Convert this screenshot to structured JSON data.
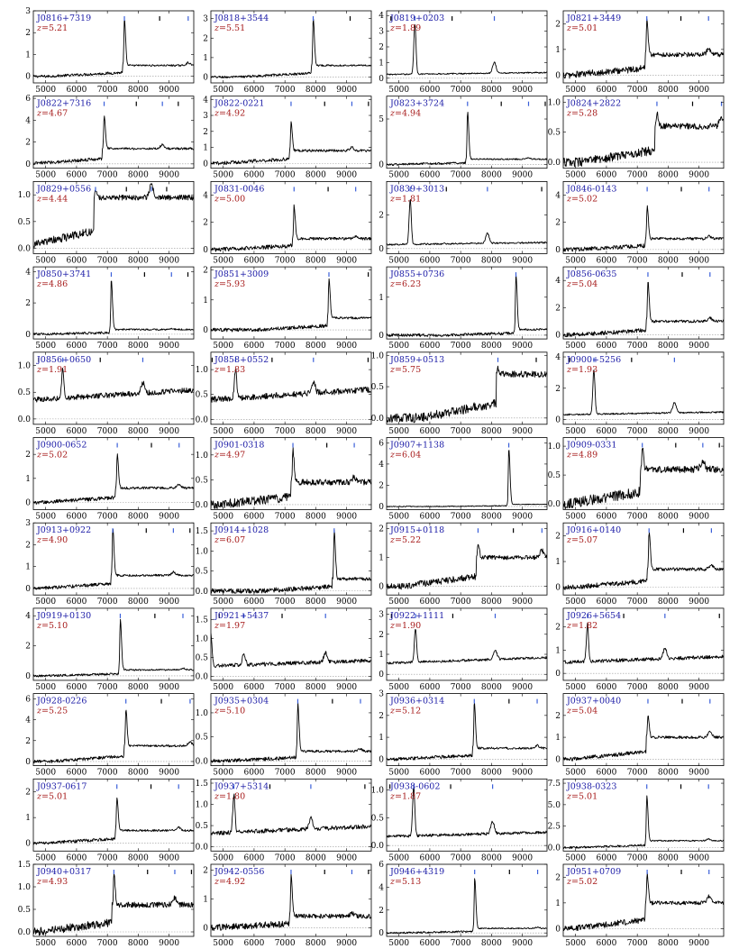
{
  "chart_data": {
    "type": "line",
    "layout": {
      "columns": 4,
      "rows": 11
    },
    "xlim": [
      4600,
      9800
    ],
    "x_ticks": [
      "5000",
      "6000",
      "7000",
      "8000",
      "9000"
    ],
    "colors": {
      "name": "#1a1aa6",
      "redshift": "#a61a1a",
      "spectrum": "#000000",
      "line_marker_blue": "#3a5fd9",
      "line_marker_black": "#000000",
      "zero_line": "#999999"
    },
    "redshift_prefix": "z=",
    "panels": [
      {
        "name": "J0816+7319",
        "z": "5.21",
        "z_value": 5.21,
        "ylim": [
          -0.3,
          3.0
        ],
        "y_ticks": [
          "0",
          "1",
          "2",
          "3"
        ],
        "peak": 2.6,
        "continuum": 0.5,
        "noise": 0.08
      },
      {
        "name": "J0818+3544",
        "z": "5.51",
        "z_value": 5.51,
        "ylim": [
          -0.3,
          3.4
        ],
        "y_ticks": [
          "0",
          "1",
          "2",
          "3"
        ],
        "peak": 3.0,
        "continuum": 0.6,
        "noise": 0.08
      },
      {
        "name": "J0819+0203",
        "z": "1.89",
        "z_value": 1.89,
        "ylim": [
          -0.3,
          4.3
        ],
        "y_ticks": [
          "0",
          "1",
          "2",
          "3",
          "4"
        ],
        "peak": 3.5,
        "continuum": 0.3,
        "noise": 0.08
      },
      {
        "name": "J0821+3449",
        "z": "5.01",
        "z_value": 5.01,
        "ylim": [
          -0.3,
          2.5
        ],
        "y_ticks": [
          "0",
          "1",
          "2"
        ],
        "peak": 2.2,
        "continuum": 0.8,
        "noise": 0.18
      },
      {
        "name": "J0822+7316",
        "z": "4.67",
        "z_value": 4.67,
        "ylim": [
          -0.4,
          6.2
        ],
        "y_ticks": [
          "0",
          "2",
          "4",
          "6"
        ],
        "peak": 4.5,
        "continuum": 1.4,
        "noise": 0.2
      },
      {
        "name": "J0822-0221",
        "z": "4.92",
        "z_value": 4.92,
        "ylim": [
          -0.3,
          4.2
        ],
        "y_ticks": [
          "0",
          "1",
          "2",
          "3",
          "4"
        ],
        "peak": 2.6,
        "continuum": 0.8,
        "noise": 0.15
      },
      {
        "name": "J0823+3724",
        "z": "4.94",
        "z_value": 4.94,
        "ylim": [
          -0.4,
          7.5
        ],
        "y_ticks": [
          "0",
          "5"
        ],
        "peak": 5.8,
        "continuum": 0.6,
        "noise": 0.15
      },
      {
        "name": "J0824+2822",
        "z": "5.28",
        "z_value": 5.28,
        "ylim": [
          -0.1,
          1.1
        ],
        "y_ticks": [
          "0.0",
          "0.5",
          "1.0"
        ],
        "peak": 0.85,
        "continuum": 0.6,
        "noise": 0.1
      },
      {
        "name": "J0829+0556",
        "z": "4.44",
        "z_value": 4.44,
        "ylim": [
          -0.1,
          1.25
        ],
        "y_ticks": [
          "0.0",
          "0.5",
          "1.0"
        ],
        "peak": 1.1,
        "continuum": 0.95,
        "noise": 0.1
      },
      {
        "name": "J0831-0046",
        "z": "5.00",
        "z_value": 5.0,
        "ylim": [
          -0.3,
          5.0
        ],
        "y_ticks": [
          "0",
          "2",
          "4"
        ],
        "peak": 3.2,
        "continuum": 0.8,
        "noise": 0.2
      },
      {
        "name": "J0839+3013",
        "z": "1.81",
        "z_value": 1.81,
        "ylim": [
          -0.3,
          4.0
        ],
        "y_ticks": [
          "0",
          "2"
        ],
        "peak": 3.0,
        "continuum": 0.3,
        "noise": 0.1
      },
      {
        "name": "J0846-0143",
        "z": "5.02",
        "z_value": 5.02,
        "ylim": [
          -0.3,
          5.0
        ],
        "y_ticks": [
          "0",
          "2",
          "4"
        ],
        "peak": 3.2,
        "continuum": 0.8,
        "noise": 0.2
      },
      {
        "name": "J0850+3741",
        "z": "4.86",
        "z_value": 4.86,
        "ylim": [
          -0.3,
          4.3
        ],
        "y_ticks": [
          "0",
          "2",
          "4"
        ],
        "peak": 3.5,
        "continuum": 0.3,
        "noise": 0.1
      },
      {
        "name": "J0851+3009",
        "z": "5.93",
        "z_value": 5.93,
        "ylim": [
          -0.3,
          2.1
        ],
        "y_ticks": [
          "0",
          "1",
          "2"
        ],
        "peak": 1.7,
        "continuum": 0.4,
        "noise": 0.08
      },
      {
        "name": "J0855+0736",
        "z": "6.23",
        "z_value": 6.23,
        "ylim": [
          -0.1,
          1.8
        ],
        "y_ticks": [
          "0",
          "1"
        ],
        "peak": 1.6,
        "continuum": 0.15,
        "noise": 0.05
      },
      {
        "name": "J0856-0635",
        "z": "5.04",
        "z_value": 5.04,
        "ylim": [
          -0.3,
          5.0
        ],
        "y_ticks": [
          "0",
          "2",
          "4"
        ],
        "peak": 4.0,
        "continuum": 1.0,
        "noise": 0.2
      },
      {
        "name": "J0856+0650",
        "z": "1.91",
        "z_value": 1.91,
        "ylim": [
          -0.1,
          1.25
        ],
        "y_ticks": [
          "0.0",
          "0.5",
          "1.0"
        ],
        "peak": 1.0,
        "continuum": 0.45,
        "noise": 0.1
      },
      {
        "name": "J0858+0552",
        "z": "1.83",
        "z_value": 1.83,
        "ylim": [
          -0.1,
          1.35
        ],
        "y_ticks": [
          "0.0",
          "0.5",
          "1.0"
        ],
        "peak": 1.1,
        "continuum": 0.5,
        "noise": 0.12
      },
      {
        "name": "J0859+0513",
        "z": "5.75",
        "z_value": 5.75,
        "ylim": [
          -0.1,
          1.05
        ],
        "y_ticks": [
          "0.0",
          "0.5",
          "1.0"
        ],
        "peak": 0.8,
        "continuum": 0.7,
        "noise": 0.1
      },
      {
        "name": "J0900+5256",
        "z": "1.93",
        "z_value": 1.93,
        "ylim": [
          -0.3,
          4.3
        ],
        "y_ticks": [
          "0",
          "2",
          "4"
        ],
        "peak": 3.2,
        "continuum": 0.4,
        "noise": 0.1
      },
      {
        "name": "J0900-0652",
        "z": "5.02",
        "z_value": 5.02,
        "ylim": [
          -0.3,
          2.7
        ],
        "y_ticks": [
          "0",
          "1",
          "2"
        ],
        "peak": 2.0,
        "continuum": 0.6,
        "noise": 0.1
      },
      {
        "name": "J0901-0318",
        "z": "4.97",
        "z_value": 4.97,
        "ylim": [
          -0.1,
          1.35
        ],
        "y_ticks": [
          "0.0",
          "0.5",
          "1.0"
        ],
        "peak": 1.1,
        "continuum": 0.45,
        "noise": 0.12
      },
      {
        "name": "J0907+1138",
        "z": "6.04",
        "z_value": 6.04,
        "ylim": [
          -0.3,
          6.5
        ],
        "y_ticks": [
          "0",
          "2",
          "4",
          "6"
        ],
        "peak": 5.5,
        "continuum": 0.2,
        "noise": 0.05
      },
      {
        "name": "J0909-0331",
        "z": "4.89",
        "z_value": 4.89,
        "ylim": [
          -0.1,
          1.15
        ],
        "y_ticks": [
          "0.0",
          "0.5",
          "1.0"
        ],
        "peak": 1.0,
        "continuum": 0.6,
        "noise": 0.12
      },
      {
        "name": "J0913+0922",
        "z": "4.90",
        "z_value": 4.9,
        "ylim": [
          -0.3,
          3.0
        ],
        "y_ticks": [
          "0",
          "1",
          "2",
          "3"
        ],
        "peak": 2.8,
        "continuum": 0.6,
        "noise": 0.1
      },
      {
        "name": "J0914+1028",
        "z": "6.07",
        "z_value": 6.07,
        "ylim": [
          -0.1,
          1.7
        ],
        "y_ticks": [
          "0.0",
          "0.5",
          "1.0",
          "1.5"
        ],
        "peak": 1.5,
        "continuum": 0.3,
        "noise": 0.08
      },
      {
        "name": "J0915+0118",
        "z": "5.22",
        "z_value": 5.22,
        "ylim": [
          -0.3,
          2.2
        ],
        "y_ticks": [
          "0",
          "1",
          "2"
        ],
        "peak": 1.5,
        "continuum": 1.0,
        "noise": 0.15
      },
      {
        "name": "J0916+0140",
        "z": "5.07",
        "z_value": 5.07,
        "ylim": [
          -0.3,
          2.5
        ],
        "y_ticks": [
          "0",
          "1",
          "2"
        ],
        "peak": 2.2,
        "continuum": 0.7,
        "noise": 0.12
      },
      {
        "name": "J0919+0130",
        "z": "5.10",
        "z_value": 5.1,
        "ylim": [
          -0.3,
          4.5
        ],
        "y_ticks": [
          "0",
          "2",
          "4"
        ],
        "peak": 3.8,
        "continuum": 0.4,
        "noise": 0.1
      },
      {
        "name": "J0921+5437",
        "z": "1.97",
        "z_value": 1.97,
        "ylim": [
          -0.1,
          1.8
        ],
        "y_ticks": [
          "0.0",
          "0.5",
          "1.0",
          "1.5"
        ],
        "peak": 1.2,
        "continuum": 0.35,
        "noise": 0.1
      },
      {
        "name": "J0922+1111",
        "z": "1.90",
        "z_value": 1.9,
        "ylim": [
          -0.3,
          3.3
        ],
        "y_ticks": [
          "0",
          "1",
          "2",
          "3"
        ],
        "peak": 2.4,
        "continuum": 0.7,
        "noise": 0.12
      },
      {
        "name": "J0926+5654",
        "z": "1.82",
        "z_value": 1.82,
        "ylim": [
          -0.3,
          2.8
        ],
        "y_ticks": [
          "0",
          "1",
          "2"
        ],
        "peak": 2.2,
        "continuum": 0.6,
        "noise": 0.15
      },
      {
        "name": "J0928-0226",
        "z": "5.25",
        "z_value": 5.25,
        "ylim": [
          -0.4,
          6.5
        ],
        "y_ticks": [
          "0",
          "2",
          "4",
          "6"
        ],
        "peak": 5.0,
        "continuum": 1.5,
        "noise": 0.2
      },
      {
        "name": "J0935+0304",
        "z": "5.10",
        "z_value": 5.1,
        "ylim": [
          -0.1,
          1.4
        ],
        "y_ticks": [
          "0.0",
          "0.5",
          "1.0"
        ],
        "peak": 1.2,
        "continuum": 0.2,
        "noise": 0.05
      },
      {
        "name": "J0936+0314",
        "z": "5.12",
        "z_value": 5.12,
        "ylim": [
          -0.3,
          3.0
        ],
        "y_ticks": [
          "0",
          "1",
          "2",
          "3"
        ],
        "peak": 2.6,
        "continuum": 0.5,
        "noise": 0.1
      },
      {
        "name": "J0937+0040",
        "z": "5.04",
        "z_value": 5.04,
        "ylim": [
          -0.3,
          3.0
        ],
        "y_ticks": [
          "0",
          "1",
          "2"
        ],
        "peak": 2.0,
        "continuum": 1.0,
        "noise": 0.12
      },
      {
        "name": "J0937-0617",
        "z": "5.01",
        "z_value": 5.01,
        "ylim": [
          -0.3,
          2.5
        ],
        "y_ticks": [
          "0",
          "1",
          "2"
        ],
        "peak": 1.8,
        "continuum": 0.5,
        "noise": 0.08
      },
      {
        "name": "J0937+5314",
        "z": "1.80",
        "z_value": 1.8,
        "ylim": [
          -0.1,
          1.6
        ],
        "y_ticks": [
          "0.0",
          "0.5",
          "1.0",
          "1.5"
        ],
        "peak": 1.3,
        "continuum": 0.4,
        "noise": 0.1
      },
      {
        "name": "J0938-0602",
        "z": "1.87",
        "z_value": 1.87,
        "ylim": [
          -0.1,
          1.2
        ],
        "y_ticks": [
          "0.0",
          "0.5",
          "1.0"
        ],
        "peak": 1.1,
        "continuum": 0.2,
        "noise": 0.05
      },
      {
        "name": "J0938-0323",
        "z": "5.01",
        "z_value": 5.01,
        "ylim": [
          -0.4,
          8.0
        ],
        "y_ticks": [
          "0.0",
          "2.5",
          "5.0",
          "7.5"
        ],
        "peak": 6.0,
        "continuum": 0.8,
        "noise": 0.15
      },
      {
        "name": "J0940+0317",
        "z": "4.93",
        "z_value": 4.93,
        "ylim": [
          -0.1,
          1.5
        ],
        "y_ticks": [
          "0.0",
          "0.5",
          "1.0",
          "1.5"
        ],
        "peak": 1.3,
        "continuum": 0.6,
        "noise": 0.12
      },
      {
        "name": "J0942-0556",
        "z": "4.92",
        "z_value": 4.92,
        "ylim": [
          -0.3,
          2.2
        ],
        "y_ticks": [
          "0",
          "1",
          "2"
        ],
        "peak": 1.8,
        "continuum": 0.4,
        "noise": 0.15
      },
      {
        "name": "J0946+4319",
        "z": "5.13",
        "z_value": 5.13,
        "ylim": [
          -0.3,
          6.0
        ],
        "y_ticks": [
          "0",
          "2",
          "4",
          "6"
        ],
        "peak": 4.8,
        "continuum": 0.4,
        "noise": 0.1
      },
      {
        "name": "J0951+0709",
        "z": "5.02",
        "z_value": 5.02,
        "ylim": [
          -0.3,
          2.5
        ],
        "y_ticks": [
          "0",
          "1",
          "2"
        ],
        "peak": 2.1,
        "continuum": 1.0,
        "noise": 0.15
      }
    ]
  }
}
